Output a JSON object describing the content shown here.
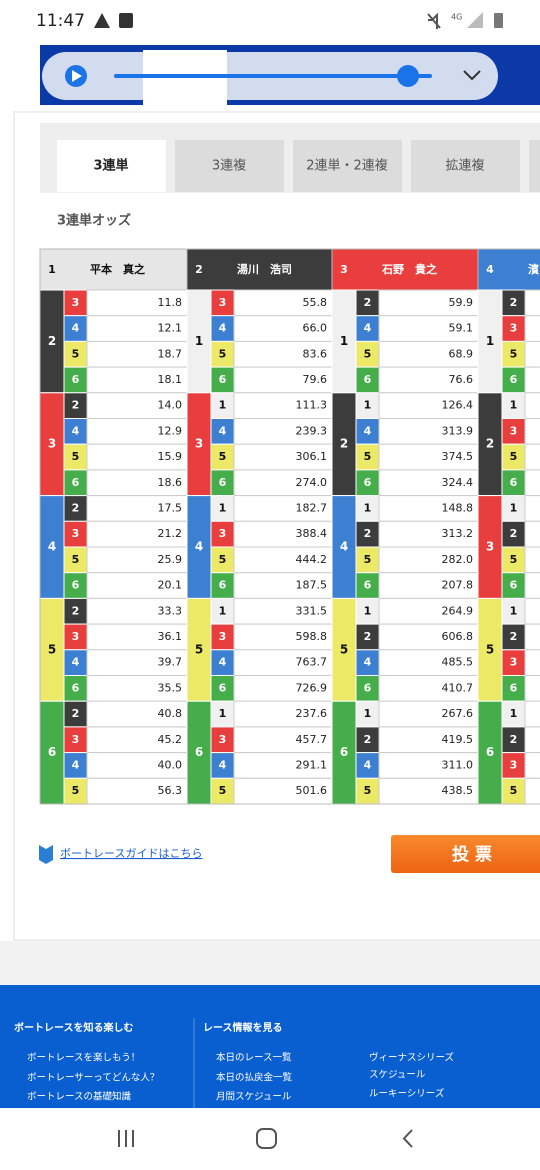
{
  "status_bar": {
    "time": "11:47",
    "network": "4G"
  },
  "tabs": [
    "3連単",
    "3連複",
    "2連単・2連複",
    "拡連複"
  ],
  "section_title": "3連単オッズ",
  "table": {
    "header": [
      {
        "number": "1",
        "name": "平本　真之"
      },
      {
        "number": "2",
        "name": "湯川　浩司"
      },
      {
        "number": "3",
        "name": "石野　貴之"
      },
      {
        "number": "4",
        "name": "濱"
      }
    ],
    "groups": [
      {
        "blocks": [
          {
            "second": "2",
            "rows": [
              {
                "third": "3",
                "odds": "11.8"
              },
              {
                "third": "4",
                "odds": "12.1"
              },
              {
                "third": "5",
                "odds": "18.7"
              },
              {
                "third": "6",
                "odds": "18.1"
              }
            ]
          },
          {
            "second": "3",
            "rows": [
              {
                "third": "2",
                "odds": "14.0"
              },
              {
                "third": "4",
                "odds": "12.9"
              },
              {
                "third": "5",
                "odds": "15.9"
              },
              {
                "third": "6",
                "odds": "18.6"
              }
            ]
          },
          {
            "second": "4",
            "rows": [
              {
                "third": "2",
                "odds": "17.5"
              },
              {
                "third": "3",
                "odds": "21.2"
              },
              {
                "third": "5",
                "odds": "25.9"
              },
              {
                "third": "6",
                "odds": "20.1"
              }
            ]
          },
          {
            "second": "5",
            "rows": [
              {
                "third": "2",
                "odds": "33.3"
              },
              {
                "third": "3",
                "odds": "36.1"
              },
              {
                "third": "4",
                "odds": "39.7"
              },
              {
                "third": "6",
                "odds": "35.5"
              }
            ]
          },
          {
            "second": "6",
            "rows": [
              {
                "third": "2",
                "odds": "40.8"
              },
              {
                "third": "3",
                "odds": "45.2"
              },
              {
                "third": "4",
                "odds": "40.0"
              },
              {
                "third": "5",
                "odds": "56.3"
              }
            ]
          }
        ]
      },
      {
        "blocks": [
          {
            "second": "1",
            "rows": [
              {
                "third": "3",
                "odds": "55.8"
              },
              {
                "third": "4",
                "odds": "66.0"
              },
              {
                "third": "5",
                "odds": "83.6"
              },
              {
                "third": "6",
                "odds": "79.6"
              }
            ]
          },
          {
            "second": "3",
            "rows": [
              {
                "third": "1",
                "odds": "111.3"
              },
              {
                "third": "4",
                "odds": "239.3"
              },
              {
                "third": "5",
                "odds": "306.1"
              },
              {
                "third": "6",
                "odds": "274.0"
              }
            ]
          },
          {
            "second": "4",
            "rows": [
              {
                "third": "1",
                "odds": "182.7"
              },
              {
                "third": "3",
                "odds": "388.4"
              },
              {
                "third": "5",
                "odds": "444.2"
              },
              {
                "third": "6",
                "odds": "187.5"
              }
            ]
          },
          {
            "second": "5",
            "rows": [
              {
                "third": "1",
                "odds": "331.5"
              },
              {
                "third": "3",
                "odds": "598.8"
              },
              {
                "third": "4",
                "odds": "763.7"
              },
              {
                "third": "6",
                "odds": "726.9"
              }
            ]
          },
          {
            "second": "6",
            "rows": [
              {
                "third": "1",
                "odds": "237.6"
              },
              {
                "third": "3",
                "odds": "457.7"
              },
              {
                "third": "4",
                "odds": "291.1"
              },
              {
                "third": "5",
                "odds": "501.6"
              }
            ]
          }
        ]
      },
      {
        "blocks": [
          {
            "second": "1",
            "rows": [
              {
                "third": "2",
                "odds": "59.9"
              },
              {
                "third": "4",
                "odds": "59.1"
              },
              {
                "third": "5",
                "odds": "68.9"
              },
              {
                "third": "6",
                "odds": "76.6"
              }
            ]
          },
          {
            "second": "2",
            "rows": [
              {
                "third": "1",
                "odds": "126.4"
              },
              {
                "third": "4",
                "odds": "313.9"
              },
              {
                "third": "5",
                "odds": "374.5"
              },
              {
                "third": "6",
                "odds": "324.4"
              }
            ]
          },
          {
            "second": "4",
            "rows": [
              {
                "third": "1",
                "odds": "148.8"
              },
              {
                "third": "2",
                "odds": "313.2"
              },
              {
                "third": "5",
                "odds": "282.0"
              },
              {
                "third": "6",
                "odds": "207.8"
              }
            ]
          },
          {
            "second": "5",
            "rows": [
              {
                "third": "1",
                "odds": "264.9"
              },
              {
                "third": "2",
                "odds": "606.8"
              },
              {
                "third": "4",
                "odds": "485.5"
              },
              {
                "third": "6",
                "odds": "410.7"
              }
            ]
          },
          {
            "second": "6",
            "rows": [
              {
                "third": "1",
                "odds": "267.6"
              },
              {
                "third": "2",
                "odds": "419.5"
              },
              {
                "third": "4",
                "odds": "311.0"
              },
              {
                "third": "5",
                "odds": "438.5"
              }
            ]
          }
        ]
      },
      {
        "blocks": [
          {
            "second": "1",
            "rows": [
              {
                "third": "2"
              },
              {
                "third": "3"
              },
              {
                "third": "5"
              },
              {
                "third": "6"
              }
            ]
          },
          {
            "second": "2",
            "rows": [
              {
                "third": "1"
              },
              {
                "third": "3"
              },
              {
                "third": "5"
              },
              {
                "third": "6"
              }
            ]
          },
          {
            "second": "3",
            "rows": [
              {
                "third": "1"
              },
              {
                "third": "2"
              },
              {
                "third": "5"
              },
              {
                "third": "6"
              }
            ]
          },
          {
            "second": "5",
            "rows": [
              {
                "third": "1"
              },
              {
                "third": "2"
              },
              {
                "third": "3"
              },
              {
                "third": "6"
              }
            ]
          },
          {
            "second": "6",
            "rows": [
              {
                "third": "1"
              },
              {
                "third": "2"
              },
              {
                "third": "3"
              },
              {
                "third": "5"
              }
            ]
          }
        ]
      }
    ]
  },
  "guide_link": "ボートレースガイドはこちら",
  "vote_button": "投 票",
  "footer": {
    "col1": {
      "heading": "ボートレースを知る楽しむ",
      "links": [
        "ボートレースを楽しもう！",
        "ボートレーサーってどんな人？",
        "ボートレースの基礎知識"
      ]
    },
    "col2": {
      "heading": "レース情報を見る",
      "links": [
        "本日のレース一覧",
        "本日の払戻金一覧",
        "月間スケジュール"
      ]
    },
    "col3": {
      "links": [
        "ヴィーナスシリーズ",
        "スケジュール",
        "ルーキーシリーズ"
      ]
    }
  }
}
